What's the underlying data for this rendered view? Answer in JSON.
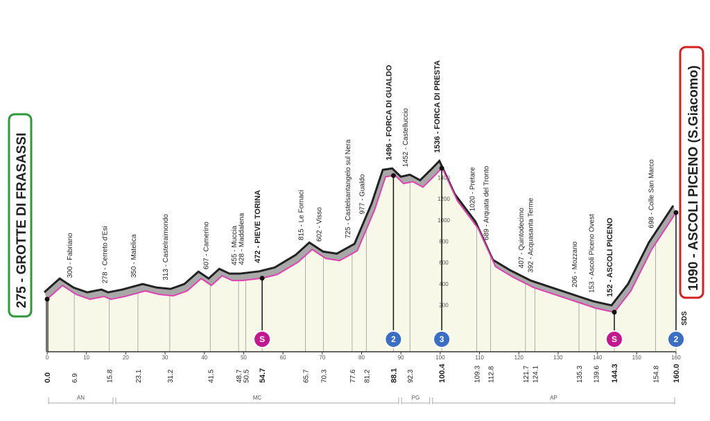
{
  "chart_data": {
    "type": "area",
    "start_label": "275 - GROTTE DI FRASASSI",
    "finish_label": "1090 - ASCOLI PICENO (S.Giacomo)",
    "sds_label": "SDS",
    "fill_color": "#f7f8e8",
    "ridge_color": "#a8a8a8",
    "line_color": "#e040b0",
    "x": [
      0,
      3.9,
      7.4,
      10.9,
      14.5,
      16.2,
      19.8,
      25.0,
      28.6,
      32.1,
      35.6,
      39.2,
      41.8,
      44.5,
      47.1,
      49.7,
      54.7,
      58.6,
      63.9,
      67.4,
      70.9,
      74.4,
      78.9,
      83.3,
      86.1,
      88.5,
      90.7,
      93.0,
      95.6,
      98.3,
      100.5,
      104.4,
      109.7,
      114.1,
      118.5,
      123.8,
      129.1,
      134.4,
      139.7,
      144.3,
      148.5,
      153.8,
      160
    ],
    "values": [
      275,
      404,
      319,
      274,
      300,
      274,
      300,
      352,
      319,
      306,
      352,
      469,
      404,
      495,
      450,
      450,
      472,
      508,
      625,
      743,
      658,
      638,
      730,
      1114,
      1427,
      1440,
      1362,
      1381,
      1329,
      1427,
      1511,
      1199,
      938,
      580,
      482,
      384,
      319,
      254,
      189,
      152,
      352,
      743,
      1090
    ],
    "xlim": [
      0,
      160
    ],
    "ylim": [
      -220,
      1800
    ],
    "yticks": [
      200,
      400,
      600,
      800,
      1000,
      1200,
      1400
    ],
    "xticks": [
      0,
      10,
      20,
      30,
      40,
      50,
      60,
      70,
      80,
      90,
      100,
      110,
      120,
      130,
      140,
      150,
      160
    ],
    "km_labels": [
      {
        "value": 0,
        "label": "0.0"
      },
      6.9,
      15.8,
      23.1,
      31.2,
      41.5,
      48.7,
      50.5,
      54.7,
      65.7,
      70.3,
      77.6,
      81.2,
      88.1,
      92.3,
      100.4,
      109.3,
      112.8,
      121.7,
      124.1,
      135.3,
      139.6,
      144.3,
      154.8,
      {
        "value": 160,
        "label": "160.0"
      }
    ],
    "km_bold": [
      0,
      8,
      13,
      15,
      22,
      24
    ],
    "annotations": [
      {
        "text": "300 - Fabriano",
        "x": 6.9,
        "bold": false
      },
      {
        "text": "278 - Cerreto d'Esi",
        "x": 15.8,
        "bold": false
      },
      {
        "text": "350 - Matelica",
        "x": 23.1,
        "bold": false
      },
      {
        "text": "313 - Castelraimondo",
        "x": 31.2,
        "bold": false
      },
      {
        "text": "607 - Camerino",
        "x": 41.5,
        "bold": false
      },
      {
        "text": "455 - Muccia",
        "x": 48.7,
        "bold": false
      },
      {
        "text": "428 - Maddalena",
        "x": 50.5,
        "bold": false
      },
      {
        "text": "472 - PIEVE TORINA",
        "x": 54.7,
        "bold": true
      },
      {
        "text": "815 - Le Fornaci",
        "x": 65.7,
        "bold": false
      },
      {
        "text": "602 - Visso",
        "x": 70.3,
        "bold": false
      },
      {
        "text": "725 - Castelsantangelo sul Nera",
        "x": 77.6,
        "bold": false
      },
      {
        "text": "977 - Gualdo",
        "x": 81.2,
        "bold": false
      },
      {
        "text": "1496 - FORCA DI GUALDO",
        "x": 88.1,
        "bold": true
      },
      {
        "text": "1452 - Castelluccio",
        "x": 92.3,
        "bold": false
      },
      {
        "text": "1536 - FORCA DI PRESTA",
        "x": 100.4,
        "bold": true
      },
      {
        "text": "1020 - Pretare",
        "x": 109.3,
        "bold": false
      },
      {
        "text": "689 - Arquata del Tronto",
        "x": 112.8,
        "bold": false
      },
      {
        "text": "407 - Quintodecimo",
        "x": 121.7,
        "bold": false
      },
      {
        "text": "392 - Acquasanta Terme",
        "x": 124.1,
        "bold": false
      },
      {
        "text": "206 - Mozzano",
        "x": 135.3,
        "bold": false
      },
      {
        "text": "153 - Ascoli Piceno Ovest",
        "x": 139.6,
        "bold": false
      },
      {
        "text": "152 - ASCOLI PICENO",
        "x": 144.3,
        "bold": true
      },
      {
        "text": "698 - Colle San Marco",
        "x": 154.8,
        "bold": false
      }
    ],
    "markers": [
      {
        "label": "S",
        "x": 54.7,
        "color": "#c2188f"
      },
      {
        "label": "2",
        "x": 88.1,
        "color": "#3a6fc4"
      },
      {
        "label": "3",
        "x": 100.4,
        "color": "#3a6fc4"
      },
      {
        "label": "S",
        "x": 144.3,
        "color": "#c2188f"
      },
      {
        "label": "2",
        "x": 160,
        "color": "#3a6fc4"
      }
    ],
    "regions": [
      {
        "label": "AN",
        "from": 0,
        "to": 17.1
      },
      {
        "label": "MC",
        "from": 17.1,
        "to": 89.8
      },
      {
        "label": "PG",
        "from": 89.8,
        "to": 97.7
      },
      {
        "label": "AP",
        "from": 97.7,
        "to": 160
      }
    ]
  }
}
